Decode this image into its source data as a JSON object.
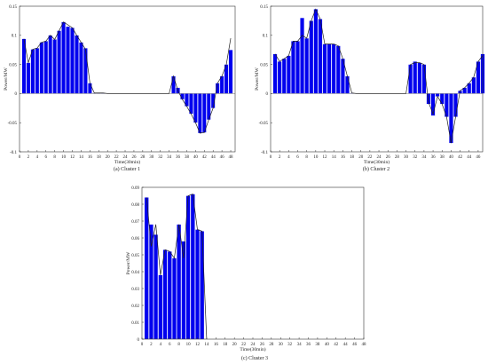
{
  "chart_data": [
    {
      "type": "bar",
      "caption": "(a)   Cluster 1",
      "xlabel": "Time(30min)",
      "ylabel": "Power/MW",
      "ylim": [
        -0.1,
        0.15
      ],
      "yticks": [
        -0.1,
        -0.05,
        0,
        0.05,
        0.1,
        0.15
      ],
      "ytick_labels": [
        "-0.1",
        "-0.05",
        "0",
        "0.05",
        "0.1",
        "0.15"
      ],
      "xlim": [
        0,
        49
      ],
      "xticks": [
        0,
        2,
        4,
        6,
        8,
        10,
        12,
        14,
        16,
        18,
        20,
        22,
        24,
        26,
        28,
        30,
        32,
        34,
        36,
        38,
        40,
        42,
        44,
        46,
        48
      ],
      "x": [
        1,
        2,
        3,
        4,
        5,
        6,
        7,
        8,
        9,
        10,
        11,
        12,
        13,
        14,
        15,
        16,
        17,
        18,
        19,
        20,
        21,
        22,
        23,
        24,
        25,
        26,
        27,
        28,
        29,
        30,
        31,
        32,
        33,
        34,
        35,
        36,
        37,
        38,
        39,
        40,
        41,
        42,
        43,
        44,
        45,
        46,
        47,
        48
      ],
      "values": [
        0.094,
        0.053,
        0.076,
        0.078,
        0.088,
        0.09,
        0.1,
        0.093,
        0.108,
        0.123,
        0.115,
        0.113,
        0.1,
        0.088,
        0.078,
        0.018,
        0.001,
        0.001,
        0.001,
        0.0,
        0.0,
        0.0,
        0.0,
        0.0,
        0.0,
        0.0,
        0.0,
        0.0,
        0.0,
        0.0,
        0.0,
        0.0,
        0.0,
        0.0,
        0.03,
        0.01,
        -0.01,
        -0.022,
        -0.035,
        -0.05,
        -0.068,
        -0.067,
        -0.045,
        -0.025,
        0.018,
        0.03,
        0.05,
        0.075
      ],
      "line": [
        0.094,
        0.053,
        0.076,
        0.078,
        0.088,
        0.09,
        0.1,
        0.093,
        0.108,
        0.123,
        0.118,
        0.113,
        0.1,
        0.088,
        0.076,
        0.018,
        0.001,
        0.001,
        0.001,
        0.0,
        0.0,
        0.0,
        0.0,
        0.0,
        0.0,
        0.0,
        0.0,
        0.0,
        0.0,
        0.0,
        0.0,
        0.0,
        0.0,
        0.0,
        0.03,
        0.005,
        -0.01,
        -0.022,
        -0.035,
        -0.05,
        -0.068,
        -0.067,
        -0.045,
        -0.025,
        0.018,
        0.03,
        0.05,
        0.095
      ],
      "bar_color": "#0000ee",
      "grid": false
    },
    {
      "type": "bar",
      "caption": "(b)   Cluster 2",
      "xlabel": "Time(30min)",
      "ylabel": "Power/MW",
      "ylim": [
        -0.1,
        0.15
      ],
      "yticks": [
        -0.1,
        -0.05,
        0,
        0.05,
        0.1,
        0.15
      ],
      "ytick_labels": [
        "-0.1",
        "-0.05",
        "0",
        "0.05",
        "0.1",
        "0.15"
      ],
      "xlim": [
        0,
        47
      ],
      "xticks": [
        0,
        2,
        4,
        6,
        8,
        10,
        12,
        14,
        16,
        18,
        20,
        22,
        24,
        26,
        28,
        30,
        32,
        34,
        36,
        38,
        40,
        42,
        44,
        46
      ],
      "x": [
        1,
        2,
        3,
        4,
        5,
        6,
        7,
        8,
        9,
        10,
        11,
        12,
        13,
        14,
        15,
        16,
        17,
        18,
        19,
        20,
        21,
        22,
        23,
        24,
        25,
        26,
        27,
        28,
        29,
        30,
        31,
        32,
        33,
        34,
        35,
        36,
        37,
        38,
        39,
        40,
        41,
        42,
        43,
        44,
        45,
        46,
        47
      ],
      "values": [
        0.068,
        0.055,
        0.06,
        0.065,
        0.09,
        0.09,
        0.13,
        0.095,
        0.125,
        0.145,
        0.128,
        0.085,
        0.085,
        0.085,
        0.082,
        0.06,
        0.03,
        0.001,
        0.0,
        0.0,
        0.0,
        0.0,
        0.0,
        0.0,
        0.0,
        0.0,
        0.0,
        0.0,
        0.0,
        0.0,
        0.05,
        0.055,
        0.053,
        0.05,
        -0.018,
        -0.038,
        -0.005,
        -0.018,
        -0.04,
        -0.085,
        -0.04,
        0.005,
        0.01,
        0.018,
        0.028,
        0.055,
        0.068
      ],
      "line": [
        0.068,
        0.055,
        0.06,
        0.065,
        0.09,
        0.09,
        0.1,
        0.095,
        0.125,
        0.145,
        0.128,
        0.085,
        0.085,
        0.085,
        0.082,
        0.06,
        0.03,
        0.001,
        0.0,
        0.0,
        0.0,
        0.0,
        0.0,
        0.0,
        0.0,
        0.0,
        0.0,
        0.0,
        0.0,
        0.0,
        0.05,
        0.053,
        0.053,
        0.05,
        -0.015,
        -0.035,
        -0.005,
        -0.018,
        -0.04,
        -0.085,
        -0.04,
        0.005,
        0.01,
        0.018,
        0.028,
        0.055,
        0.065
      ],
      "bar_color": "#0000ee",
      "grid": false
    },
    {
      "type": "bar",
      "caption": "(c)   Cluster 3",
      "xlabel": "Time(30min)",
      "ylabel": "Power/MW",
      "ylim": [
        0,
        0.09
      ],
      "yticks": [
        0,
        0.01,
        0.02,
        0.03,
        0.04,
        0.05,
        0.06,
        0.07,
        0.08,
        0.09
      ],
      "ytick_labels": [
        "0",
        "0.01",
        "0.02",
        "0.03",
        "0.04",
        "0.05",
        "0.06",
        "0.07",
        "0.08",
        "0.09"
      ],
      "xlim": [
        0,
        48
      ],
      "xticks": [
        0,
        2,
        4,
        6,
        8,
        10,
        12,
        14,
        16,
        18,
        20,
        22,
        24,
        26,
        28,
        30,
        32,
        34,
        36,
        38,
        40,
        42,
        44,
        46,
        48
      ],
      "x": [
        1,
        2,
        3,
        4,
        5,
        6,
        7,
        8,
        9,
        10,
        11,
        12,
        13,
        14
      ],
      "values": [
        0.084,
        0.068,
        0.062,
        0.038,
        0.053,
        0.052,
        0.048,
        0.068,
        0.058,
        0.085,
        0.086,
        0.065,
        0.064,
        0.0
      ],
      "line": [
        0.084,
        0.055,
        0.068,
        0.038,
        0.053,
        0.052,
        0.048,
        0.068,
        0.048,
        0.085,
        0.086,
        0.065,
        0.064,
        0.0
      ],
      "bar_color": "#0000ee",
      "grid": false
    }
  ]
}
